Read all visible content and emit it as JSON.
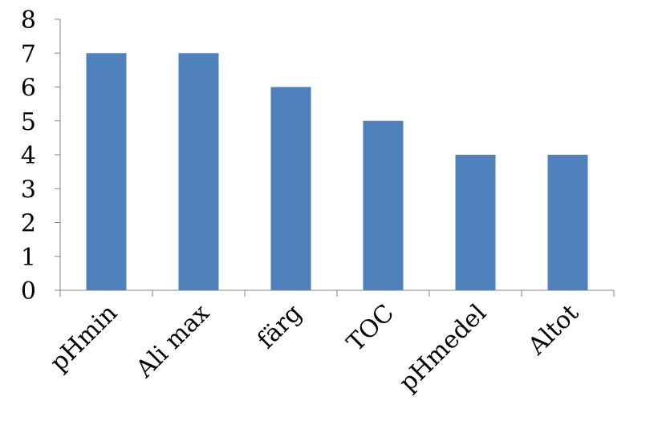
{
  "chart_data": {
    "type": "bar",
    "categories": [
      "pHmin",
      "Ali max",
      "färg",
      "TOC",
      "pHmedel",
      "Altot"
    ],
    "values": [
      7,
      7,
      6,
      5,
      4,
      4
    ],
    "title": "",
    "xlabel": "",
    "ylabel": "",
    "ylim": [
      0,
      8
    ],
    "yticks": [
      0,
      1,
      2,
      3,
      4,
      5,
      6,
      7,
      8
    ],
    "grid": false,
    "legend": "none",
    "bar_color": "#4F81BD",
    "axis_color": "#868686"
  }
}
